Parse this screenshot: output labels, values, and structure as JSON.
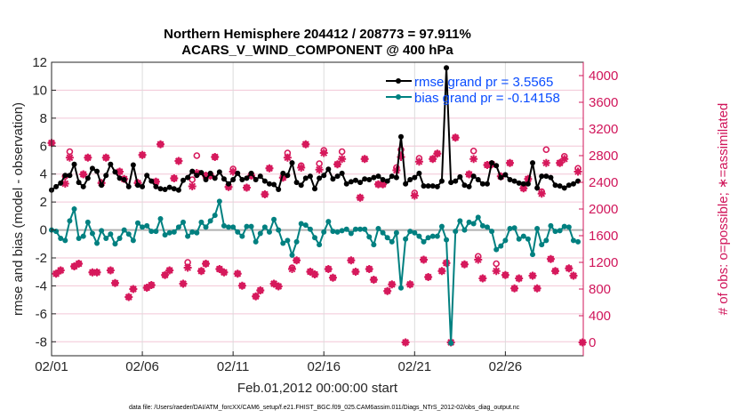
{
  "chart_data": {
    "type": "line",
    "title": [
      "Northern Hemisphere 204412 / 208773 = 97.911%",
      "ACARS_V_WIND_COMPONENT @ 400 hPa"
    ],
    "xlabel": "Feb.01,2012 00:00:00 start",
    "ylabel": "rmse and bias (model - observation)",
    "ylabel_right": "# of obs: o=possible; ∗=assimilated",
    "footer": "data file: /Users/raeder/DAI/ATM_forcXX/CAM6_setup/f.e21.FHIST_BGC.f09_025.CAM6assim.011/Diags_NTrS_2012-02/obs_diag_output.nc",
    "xticks": [
      {
        "label": "02/01",
        "t": "02/01 00"
      },
      {
        "label": "02/06",
        "t": "02/06 00"
      },
      {
        "label": "02/11",
        "t": "02/11 00"
      },
      {
        "label": "02/16",
        "t": "02/16 00"
      },
      {
        "label": "02/21",
        "t": "02/21 00"
      },
      {
        "label": "02/26",
        "t": "02/26 00"
      }
    ],
    "xlim": [
      "02/01 00",
      "03/01 07"
    ],
    "ylim": [
      -9,
      12
    ],
    "yticks": [
      -8,
      -6,
      -4,
      -2,
      0,
      2,
      4,
      6,
      8,
      10,
      12
    ],
    "ylim_right": [
      -200,
      4200
    ],
    "yticks_right": [
      0,
      400,
      800,
      1200,
      1600,
      2000,
      2400,
      2800,
      3200,
      3600,
      4000
    ],
    "grid": true,
    "legend_position": "top-right",
    "colors": {
      "rmse": "#000000",
      "bias": "#008080",
      "obs": "#d6195c",
      "legend_text": "#0a4cff",
      "grid": "#f2c6d6",
      "zero_line": "#b0b0b0"
    },
    "times": [
      "02/01 00",
      "02/01 06",
      "02/01 12",
      "02/01 18",
      "02/02 00",
      "02/02 06",
      "02/02 12",
      "02/02 18",
      "02/03 00",
      "02/03 06",
      "02/03 12",
      "02/03 18",
      "02/04 00",
      "02/04 06",
      "02/04 12",
      "02/04 18",
      "02/05 00",
      "02/05 06",
      "02/05 12",
      "02/05 18",
      "02/06 00",
      "02/06 06",
      "02/06 12",
      "02/06 18",
      "02/07 00",
      "02/07 06",
      "02/07 12",
      "02/07 18",
      "02/08 00",
      "02/08 06",
      "02/08 12",
      "02/08 18",
      "02/09 00",
      "02/09 06",
      "02/09 12",
      "02/09 18",
      "02/10 00",
      "02/10 06",
      "02/10 12",
      "02/10 18",
      "02/11 00",
      "02/11 06",
      "02/11 12",
      "02/11 18",
      "02/12 00",
      "02/12 06",
      "02/12 12",
      "02/12 18",
      "02/13 00",
      "02/13 06",
      "02/13 12",
      "02/13 18",
      "02/14 00",
      "02/14 06",
      "02/14 12",
      "02/14 18",
      "02/15 00",
      "02/15 06",
      "02/15 12",
      "02/15 18",
      "02/16 00",
      "02/16 06",
      "02/16 12",
      "02/16 18",
      "02/17 00",
      "02/17 06",
      "02/17 12",
      "02/17 18",
      "02/18 00",
      "02/18 06",
      "02/18 12",
      "02/18 18",
      "02/19 00",
      "02/19 06",
      "02/19 12",
      "02/19 18",
      "02/20 00",
      "02/20 06",
      "02/20 12",
      "02/20 18",
      "02/21 00",
      "02/21 06",
      "02/21 12",
      "02/21 18",
      "02/22 00",
      "02/22 06",
      "02/22 12",
      "02/22 18",
      "02/23 00",
      "02/23 06",
      "02/23 12",
      "02/23 18",
      "02/24 00",
      "02/24 06",
      "02/24 12",
      "02/24 18",
      "02/25 00",
      "02/25 06",
      "02/25 12",
      "02/25 18",
      "02/26 00",
      "02/26 06",
      "02/26 12",
      "02/26 18",
      "02/27 00",
      "02/27 06",
      "02/27 12",
      "02/27 18",
      "02/28 00",
      "02/28 06",
      "02/28 12",
      "02/28 18",
      "02/29 00",
      "02/29 06",
      "02/29 12",
      "02/29 18",
      "03/01 00"
    ],
    "series": [
      {
        "name": "rmse grand pr = 3.5565",
        "axis": "left",
        "values": [
          2.85,
          3.1,
          3.35,
          3.9,
          3.9,
          4.7,
          3.4,
          3.1,
          3.7,
          4.4,
          4.2,
          3.2,
          3.9,
          4.7,
          4.15,
          3.7,
          3.6,
          3.1,
          4.65,
          3.2,
          3.1,
          3.9,
          3.5,
          3.1,
          2.95,
          2.9,
          3.05,
          2.95,
          2.85,
          3.55,
          3.75,
          4.2,
          3.9,
          4.1,
          3.6,
          4.05,
          3.7,
          4.15,
          3.65,
          3.3,
          3.6,
          4.05,
          3.6,
          3.7,
          4.05,
          3.6,
          3.85,
          3.5,
          3.3,
          3.25,
          2.9,
          4.05,
          3.9,
          4.8,
          3.4,
          3.2,
          3.7,
          3.85,
          2.95,
          3.7,
          3.9,
          4.35,
          3.65,
          3.85,
          4.05,
          3.3,
          3.45,
          3.55,
          3.4,
          3.65,
          3.6,
          3.75,
          3.85,
          3.6,
          3.5,
          3.85,
          3.75,
          6.67,
          3.3,
          3.6,
          3.75,
          4.05,
          3.15,
          3.15,
          3.15,
          3.1,
          3.5,
          11.6,
          3.4,
          3.5,
          3.8,
          3.2,
          3.1,
          3.85,
          3.6,
          3.3,
          3.3,
          4.8,
          4.6,
          3.75,
          3.95,
          3.6,
          3.5,
          3.35,
          3.3,
          3.3,
          4.8,
          3.0,
          3.85,
          3.85,
          3.75,
          3.2,
          3.15,
          3.0,
          3.2,
          3.3,
          3.5
        ]
      },
      {
        "name": "bias grand pr = -0.14158",
        "axis": "left",
        "values": [
          0,
          -0.1,
          -0.6,
          -0.75,
          0.65,
          1.5,
          -0.6,
          -0.45,
          0.55,
          -0.25,
          -0.95,
          -0.05,
          -0.6,
          -0.3,
          -1.0,
          -0.6,
          0,
          -0.3,
          -0.75,
          0.5,
          0.2,
          0.3,
          -0.1,
          -0.1,
          0.8,
          -0.35,
          -0.2,
          -0.15,
          0.2,
          0.55,
          -0.45,
          -0.15,
          -0.2,
          0.55,
          0.2,
          0.65,
          1.05,
          2.05,
          0.3,
          0.2,
          0.2,
          -0.15,
          -0.45,
          0.25,
          0.25,
          -0.85,
          -0.25,
          0.2,
          -0.15,
          0.75,
          0,
          -0.95,
          -0.75,
          -1.8,
          -0.85,
          0.45,
          0.35,
          0.05,
          -0.55,
          -1.05,
          -0.15,
          0.6,
          -0.1,
          -0.15,
          -0.05,
          0.05,
          -0.25,
          0.05,
          0.05,
          0.05,
          -0.5,
          -1.05,
          0.1,
          -0.2,
          -0.55,
          -0.85,
          -0.2,
          -4.15,
          -0.65,
          -0.1,
          -0.2,
          -0.45,
          -0.85,
          -0.55,
          -0.45,
          -0.45,
          0.25,
          -0.7,
          -8.1,
          -0.1,
          0.65,
          0,
          0.55,
          0.45,
          0.9,
          0.3,
          0.2,
          -0.1,
          -1.4,
          -1.15,
          -0.75,
          0.1,
          0.15,
          -0.65,
          -0.45,
          -0.65,
          -1.75,
          0.1,
          -1.05,
          -0.75,
          0.3,
          -0.1,
          -0.05,
          0.25,
          0.2,
          -0.75,
          -0.85
        ]
      }
    ],
    "obs_columns": [
      "time",
      "possible",
      "assimilated"
    ],
    "obs": [
      [
        "02/01 00",
        2990,
        2990
      ],
      [
        "02/01 06",
        1030,
        1030
      ],
      [
        "02/01 12",
        1080,
        1080
      ],
      [
        "02/01 18",
        2490,
        2380
      ],
      [
        "02/02 00",
        2860,
        2770
      ],
      [
        "02/02 06",
        1140,
        1140
      ],
      [
        "02/02 12",
        1180,
        1180
      ],
      [
        "02/02 18",
        2520,
        2520
      ],
      [
        "02/03 00",
        2770,
        2770
      ],
      [
        "02/03 06",
        1050,
        1050
      ],
      [
        "02/03 12",
        1050,
        1050
      ],
      [
        "02/03 18",
        2390,
        2390
      ],
      [
        "02/04 00",
        2770,
        2770
      ],
      [
        "02/04 06",
        1080,
        1080
      ],
      [
        "02/04 12",
        890,
        890
      ],
      [
        "02/04 18",
        2560,
        2560
      ],
      [
        "02/05 00",
        2450,
        2450
      ],
      [
        "02/05 06",
        680,
        680
      ],
      [
        "02/05 12",
        800,
        800
      ],
      [
        "02/05 18",
        2390,
        2390
      ],
      [
        "02/06 00",
        2810,
        2810
      ],
      [
        "02/06 06",
        820,
        820
      ],
      [
        "02/06 12",
        860,
        860
      ],
      [
        "02/06 18",
        2410,
        2410
      ],
      [
        "02/07 00",
        2970,
        2970
      ],
      [
        "02/07 06",
        1010,
        1010
      ],
      [
        "02/07 12",
        1080,
        1080
      ],
      [
        "02/07 18",
        2460,
        2460
      ],
      [
        "02/08 00",
        2720,
        2720
      ],
      [
        "02/08 06",
        880,
        880
      ],
      [
        "02/08 12",
        1200,
        1120
      ],
      [
        "02/08 18",
        2440,
        2340
      ],
      [
        "02/09 00",
        2800,
        2540
      ],
      [
        "02/09 06",
        1070,
        1070
      ],
      [
        "02/09 12",
        1180,
        1180
      ],
      [
        "02/09 12",
        2500,
        2500
      ],
      [
        "02/09 18",
        2500,
        2500
      ],
      [
        "02/10 00",
        2780,
        2780
      ],
      [
        "02/10 06",
        1100,
        1100
      ],
      [
        "02/10 12",
        1050,
        1050
      ],
      [
        "02/10 18",
        2330,
        2330
      ],
      [
        "02/11 00",
        2600,
        2560
      ],
      [
        "02/11 06",
        1030,
        1030
      ],
      [
        "02/11 12",
        850,
        850
      ],
      [
        "02/11 18",
        2320,
        2320
      ],
      [
        "02/12 00",
        2500,
        2500
      ],
      [
        "02/12 06",
        690,
        690
      ],
      [
        "02/12 12",
        780,
        780
      ],
      [
        "02/12 18",
        2220,
        2220
      ],
      [
        "02/13 00",
        2610,
        2610
      ],
      [
        "02/13 06",
        880,
        880
      ],
      [
        "02/13 12",
        840,
        840
      ],
      [
        "02/13 18",
        2470,
        2470
      ],
      [
        "02/14 00",
        2840,
        2770
      ],
      [
        "02/14 06",
        1120,
        1100
      ],
      [
        "02/14 12",
        1230,
        1230
      ],
      [
        "02/14 18",
        2650,
        2620
      ],
      [
        "02/15 00",
        2970,
        2970
      ],
      [
        "02/15 06",
        1060,
        1060
      ],
      [
        "02/15 12",
        1020,
        1020
      ],
      [
        "02/15 18",
        2680,
        2590
      ],
      [
        "02/16 00",
        2880,
        2840
      ],
      [
        "02/16 06",
        1100,
        1100
      ],
      [
        "02/16 12",
        970,
        970
      ],
      [
        "02/16 18",
        2670,
        2670
      ],
      [
        "02/17 00",
        2860,
        2750
      ],
      [
        "02/17 12",
        1230,
        1230
      ],
      [
        "02/17 18",
        1060,
        1060
      ],
      [
        "02/18 00",
        2170,
        2170
      ],
      [
        "02/18 06",
        2750,
        2750
      ],
      [
        "02/18 12",
        1100,
        1100
      ],
      [
        "02/18 18",
        940,
        940
      ],
      [
        "02/19 00",
        2370,
        2370
      ],
      [
        "02/19 06",
        2370,
        2370
      ],
      [
        "02/19 12",
        770,
        770
      ],
      [
        "02/19 18",
        870,
        870
      ],
      [
        "02/20 00",
        2620,
        2580
      ],
      [
        "02/20 06",
        2890,
        2780
      ],
      [
        "02/20 12",
        0,
        0
      ],
      [
        "02/20 18",
        870,
        870
      ],
      [
        "02/21 00",
        2240,
        2200
      ],
      [
        "02/21 06",
        2760,
        2710
      ],
      [
        "02/21 12",
        1240,
        1240
      ],
      [
        "02/21 18",
        980,
        980
      ],
      [
        "02/22 00",
        2750,
        2750
      ],
      [
        "02/22 06",
        2830,
        2830
      ],
      [
        "02/22 12",
        1070,
        1070
      ],
      [
        "02/22 18",
        1190,
        1190
      ],
      [
        "02/23 00",
        0,
        0
      ],
      [
        "02/23 06",
        3070,
        3070
      ],
      [
        "02/23 18",
        1170,
        1170
      ],
      [
        "02/24 00",
        2520,
        2520
      ],
      [
        "02/24 06",
        2870,
        2750
      ],
      [
        "02/24 12",
        1290,
        1240
      ],
      [
        "02/24 18",
        960,
        960
      ],
      [
        "02/25 00",
        2660,
        2660
      ],
      [
        "02/25 06",
        2670,
        2670
      ],
      [
        "02/25 12",
        1180,
        1070
      ],
      [
        "02/25 18",
        2490,
        2490
      ],
      [
        "02/26 00",
        1010,
        1010
      ],
      [
        "02/26 06",
        2690,
        2690
      ],
      [
        "02/26 12",
        810,
        810
      ],
      [
        "02/26 18",
        960,
        960
      ],
      [
        "02/27 00",
        2310,
        2310
      ],
      [
        "02/27 06",
        2450,
        2450
      ],
      [
        "02/27 12",
        1000,
        1000
      ],
      [
        "02/27 18",
        810,
        810
      ],
      [
        "02/28 00",
        2260,
        2230
      ],
      [
        "02/28 06",
        2890,
        2690
      ],
      [
        "02/28 12",
        1250,
        1250
      ],
      [
        "02/28 18",
        1070,
        1070
      ],
      [
        "02/29 00",
        2690,
        2690
      ],
      [
        "02/29 06",
        2790,
        2750
      ],
      [
        "02/29 12",
        1110,
        1110
      ],
      [
        "02/29 18",
        1000,
        1000
      ],
      [
        "03/01 00",
        2610,
        2560
      ],
      [
        "03/01 06",
        0,
        0
      ]
    ]
  }
}
